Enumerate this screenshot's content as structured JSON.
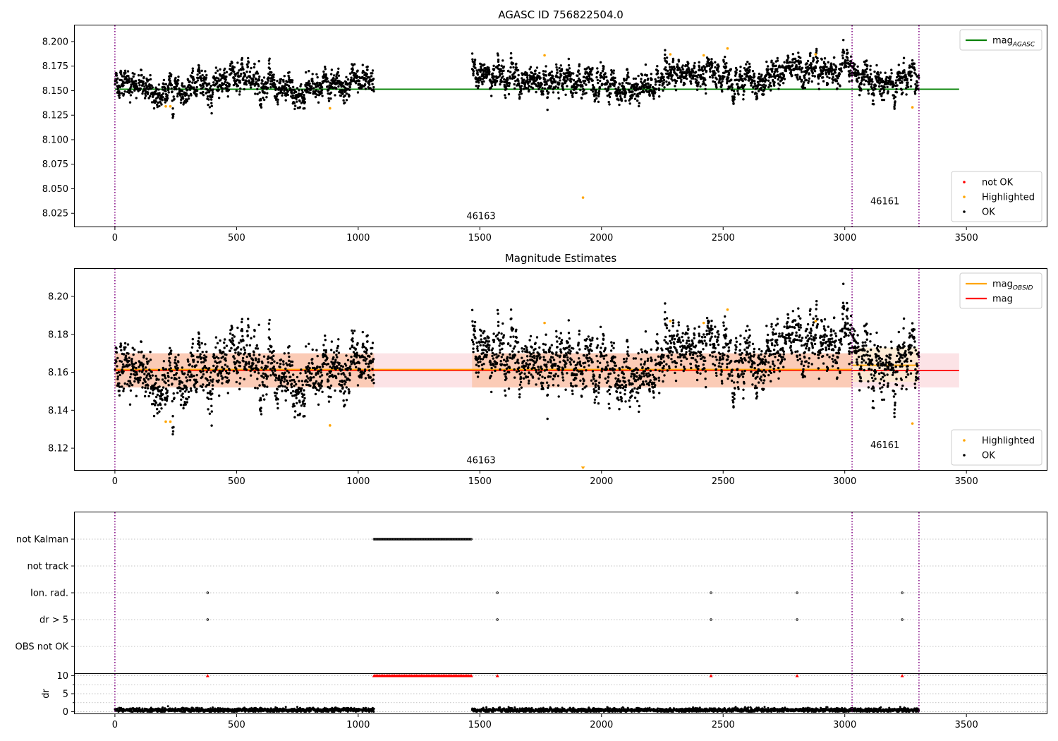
{
  "chart_data": [
    {
      "id": "panel1",
      "type": "scatter",
      "title": "AGASC ID 756822504.0",
      "xlabel": "",
      "ylabel": "",
      "xlim": [
        -165,
        3830
      ],
      "ylim": [
        8.0115,
        8.2165
      ],
      "x_ticks": [
        0,
        500,
        1000,
        1500,
        2000,
        2500,
        3000,
        3500
      ],
      "y_ticks": [
        8.025,
        8.05,
        8.075,
        8.1,
        8.125,
        8.15,
        8.175,
        8.2
      ],
      "y_tick_decimals": 3,
      "grid": false,
      "observations": [
        {
          "x_start": 0,
          "x_end": 1065,
          "noise_sd": 0.0075,
          "drift": [
            [
              0,
              0.16
            ],
            [
              150,
              0.15
            ],
            [
              500,
              0.16
            ],
            [
              800,
              0.152
            ],
            [
              1065,
              0.162
            ]
          ]
        },
        {
          "x_start": 1468,
          "x_end": 3030,
          "noise_sd": 0.0075,
          "drift": [
            [
              1468,
              0.166
            ],
            [
              1700,
              0.16
            ],
            [
              2000,
              0.158
            ],
            [
              2150,
              0.152
            ],
            [
              2300,
              0.17
            ],
            [
              2600,
              0.16
            ],
            [
              2800,
              0.17
            ],
            [
              3030,
              0.172
            ]
          ]
        },
        {
          "x_start": 3030,
          "x_end": 3305,
          "noise_sd": 0.0075,
          "drift": [
            [
              3030,
              0.175
            ],
            [
              3150,
              0.15
            ],
            [
              3305,
              0.165
            ]
          ]
        }
      ],
      "ok_point_count": 3300,
      "highlighted_points": [
        [
          209,
          8.134
        ],
        [
          228,
          8.134
        ],
        [
          884,
          8.132
        ],
        [
          1766,
          8.186
        ],
        [
          1924,
          8.041
        ],
        [
          2283,
          8.187
        ],
        [
          2420,
          8.186
        ],
        [
          2518,
          8.193
        ],
        [
          2880,
          8.187
        ],
        [
          3278,
          8.133
        ]
      ],
      "not_ok_points": [],
      "hlines": [
        {
          "name": "mag_AGASC",
          "y": 8.1515,
          "x_start": 0,
          "x_end": 3470,
          "color": "#008000"
        }
      ],
      "vlines": [
        0,
        3030,
        3305
      ],
      "annotations": [
        {
          "text": "46163",
          "x": 1505,
          "y": 8.019
        },
        {
          "text": "46161",
          "x": 3165,
          "y": 8.034
        }
      ],
      "legends": [
        {
          "position": "upper right",
          "entries": [
            {
              "kind": "line",
              "label": "mag",
              "label_sub": "AGASC",
              "color": "#008000"
            }
          ]
        },
        {
          "position": "lower right",
          "entries": [
            {
              "kind": "dot",
              "label": "not OK",
              "color": "#ff0000"
            },
            {
              "kind": "dot",
              "label": "Highlighted",
              "color": "#ffa500"
            },
            {
              "kind": "dot",
              "label": "OK",
              "color": "#000000"
            }
          ]
        }
      ]
    },
    {
      "id": "panel2",
      "type": "scatter",
      "title": "Magnitude Estimates",
      "xlabel": "",
      "ylabel": "",
      "xlim": [
        -165,
        3830
      ],
      "ylim": [
        8.1085,
        8.2145
      ],
      "x_ticks": [
        0,
        500,
        1000,
        1500,
        2000,
        2500,
        3000,
        3500
      ],
      "y_ticks": [
        8.12,
        8.14,
        8.16,
        8.18,
        8.2
      ],
      "y_tick_decimals": 2,
      "grid": false,
      "mirrors_points_of": "panel1",
      "offset_below_mag_agasc": -0.0045,
      "highlighted_points": [
        [
          209,
          8.134
        ],
        [
          228,
          8.134
        ],
        [
          884,
          8.132
        ],
        [
          1766,
          8.186
        ],
        [
          2283,
          8.187
        ],
        [
          2420,
          8.186
        ],
        [
          2518,
          8.193
        ],
        [
          2880,
          8.187
        ],
        [
          3278,
          8.133
        ]
      ],
      "clipped_markers": [
        {
          "x": 1924,
          "color": "#ffa500"
        }
      ],
      "bands": [
        {
          "name": "mag range",
          "x_start": 0,
          "x_end": 3470,
          "y_low": 8.152,
          "y_high": 8.17,
          "color": "#f8c0c8",
          "opacity": 0.45
        },
        {
          "name": "obs 46163 range",
          "x_start": 0,
          "x_end": 1065,
          "y_low": 8.152,
          "y_high": 8.17,
          "color": "#fbc3a5",
          "opacity": 0.75
        },
        {
          "name": "obs 46163 range",
          "x_start": 1468,
          "x_end": 3030,
          "y_low": 8.152,
          "y_high": 8.17,
          "color": "#fbc3a5",
          "opacity": 0.75
        },
        {
          "name": "obs 46161 range",
          "x_start": 3030,
          "x_end": 3305,
          "y_low": 8.155,
          "y_high": 8.173,
          "color": "#fde8c8",
          "opacity": 0.7
        }
      ],
      "hlines": [
        {
          "name": "mag",
          "y": 8.161,
          "x_start": 0,
          "x_end": 3470,
          "color": "#ff0000"
        },
        {
          "name": "mag_OBSID 46163",
          "y": 8.1615,
          "x_start": 0,
          "x_end": 3030,
          "color": "#ffa500"
        },
        {
          "name": "mag_OBSID 46161",
          "y": 8.1637,
          "x_start": 3030,
          "x_end": 3305,
          "color": "#ffa500"
        }
      ],
      "vlines": [
        0,
        3030,
        3305
      ],
      "annotations": [
        {
          "text": "46163",
          "x": 1505,
          "y": 8.112
        },
        {
          "text": "46161",
          "x": 3165,
          "y": 8.12
        }
      ],
      "legends": [
        {
          "position": "upper right",
          "entries": [
            {
              "kind": "line",
              "label": "mag",
              "label_sub": "OBSID",
              "color": "#ffa500"
            },
            {
              "kind": "line",
              "label": "mag",
              "label_sub": "",
              "color": "#ff0000"
            }
          ]
        },
        {
          "position": "lower right",
          "entries": [
            {
              "kind": "dot",
              "label": "Highlighted",
              "color": "#ffa500"
            },
            {
              "kind": "dot",
              "label": "OK",
              "color": "#000000"
            }
          ]
        }
      ]
    },
    {
      "id": "panel3",
      "type": "scatter",
      "title": "",
      "xlabel": "",
      "ylabel": "",
      "xlim": [
        -165,
        3830
      ],
      "categories": [
        "not Kalman",
        "not track",
        "Ion. rad.",
        "dr > 5",
        "OBS not OK"
      ],
      "grid": "horizontal dotted",
      "flags": [
        {
          "category": "not Kalman",
          "x_start": 1065,
          "x_end": 1468,
          "step": 4
        },
        {
          "category": "Ion. rad.",
          "x": [
            381,
            1572,
            2450,
            2804,
            3236
          ]
        },
        {
          "category": "dr > 5",
          "x": [
            381,
            1572,
            2450,
            2804,
            3236
          ]
        }
      ],
      "vlines": [
        0,
        3030,
        3305
      ]
    },
    {
      "id": "panel4",
      "type": "scatter",
      "title": "",
      "xlabel": "",
      "ylabel": "dr",
      "xlim": [
        -165,
        3830
      ],
      "ylim": [
        -0.5,
        10.5
      ],
      "y_ticks": [
        0,
        5,
        10
      ],
      "x_ticks": [
        0,
        500,
        1000,
        1500,
        2000,
        2500,
        3000,
        3500
      ],
      "grid": "horizontal dotted",
      "dr_noise": {
        "mean": 0.45,
        "sd": 0.3
      },
      "dr_ranges": [
        [
          0,
          1065
        ],
        [
          1468,
          3305
        ]
      ],
      "clipped_at": 10,
      "clipped_markers": {
        "ranges": [
          [
            1065,
            1468
          ]
        ],
        "step": 5,
        "points": [
          381,
          1572,
          2450,
          2804,
          3236
        ],
        "color": "#ff0000"
      },
      "vlines": [
        0,
        3030,
        3305
      ]
    }
  ]
}
